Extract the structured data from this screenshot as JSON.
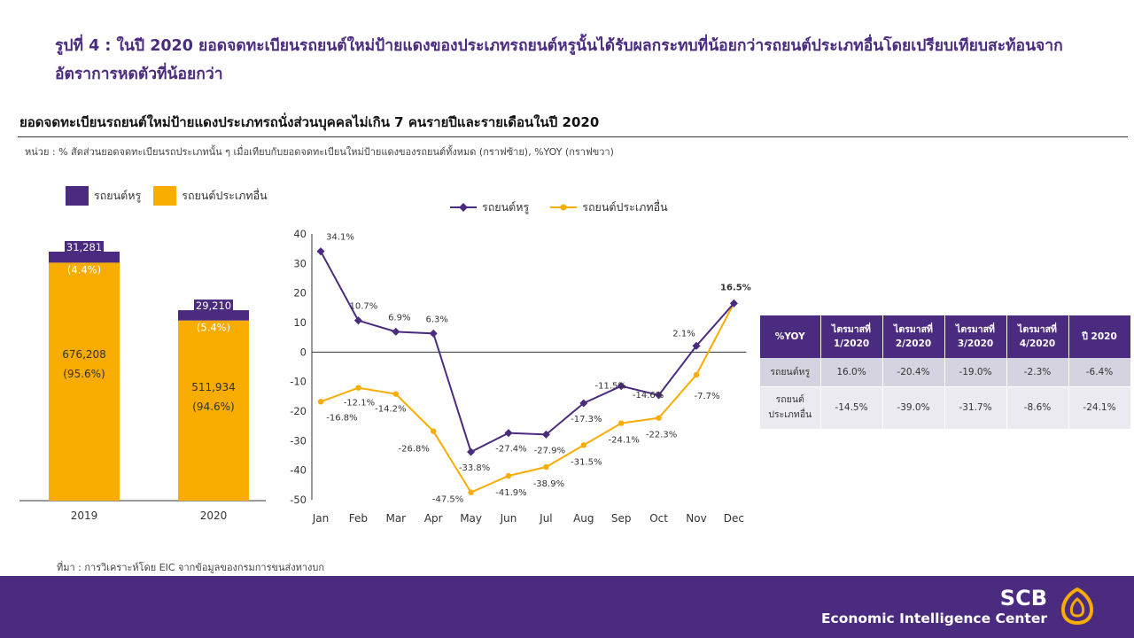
{
  "headline": "รูปที่ 4 : ในปี 2020 ยอดจดทะเบียนรถยนต์ใหม่ป้ายแดงของประเภทรถยนต์หรูนั้นได้รับผลกระทบที่น้อยกว่ารถยนต์ประเภทอื่นโดยเปรียบเทียบสะท้อนจากอัตราการหดตัวที่น้อยกว่า",
  "subtitle": "ยอดจดทะเบียนรถยนต์ใหม่ป้ายแดงประเภทรถนั่งส่วนบุคคลไม่เกิน 7 คนรายปีและรายเดือนในปี 2020",
  "unit_note": "หน่วย : % สัดส่วนยอดจดทะเบียนรถประเภทนั้น ๆ เมื่อเทียบกับยอดจดทะเบียนใหม่ป้ายแดงของรถยนต์ทั้งหมด (กราฟซ้าย), %YOY (กราฟขวา)",
  "source": "ที่มา : การวิเคราะห์โดย EIC จากข้อมูลของกรมการขนส่งทางบก",
  "brand": {
    "name": "SCB",
    "sub": "Economic Intelligence Center"
  },
  "colors": {
    "luxury": "#4b2b7f",
    "other": "#f9ac00",
    "accent": "#4b2b7f",
    "logo": "#f9ac00"
  },
  "chart_data": [
    {
      "type": "bar",
      "stacked": true,
      "categories": [
        "2019",
        "2020"
      ],
      "series": [
        {
          "name": "รถยนต์ประเภทอื่น",
          "values": [
            676208,
            511934
          ],
          "labels": [
            "676,208",
            "511,934"
          ],
          "share_labels": [
            "(95.6%)",
            "(94.6%)"
          ]
        },
        {
          "name": "รถยนต์หรู",
          "values": [
            31281,
            29210
          ],
          "labels": [
            "31,281",
            "29,210"
          ],
          "share_labels": [
            "(4.4%)",
            "(5.4%)"
          ]
        }
      ],
      "legend": [
        "รถยนต์หรู",
        "รถยนต์ประเภทอื่น"
      ],
      "legend_position": "top-left"
    },
    {
      "type": "line",
      "categories": [
        "Jan",
        "Feb",
        "Mar",
        "Apr",
        "May",
        "Jun",
        "Jul",
        "Aug",
        "Sep",
        "Oct",
        "Nov",
        "Dec"
      ],
      "series": [
        {
          "name": "รถยนต์หรู",
          "values": [
            34.1,
            10.7,
            6.9,
            6.3,
            -33.8,
            -27.4,
            -27.9,
            -17.3,
            -11.5,
            -14.6,
            2.1,
            16.5
          ],
          "labels": [
            "34.1%",
            "10.7%",
            "6.9%",
            "6.3%",
            "-33.8%",
            "-27.4%",
            "-27.9%",
            "-17.3%",
            "-11.5%",
            "-14.6%",
            "2.1%",
            "16.5%"
          ]
        },
        {
          "name": "รถยนต์ประเภทอื่น",
          "values": [
            -16.8,
            -12.1,
            -14.2,
            -26.8,
            -47.5,
            -41.9,
            -38.9,
            -31.5,
            -24.1,
            -22.3,
            -7.7,
            16.5
          ],
          "labels": [
            "-16.8%",
            "-12.1%",
            "-14.2%",
            "-26.8%",
            "-47.5%",
            "-41.9%",
            "-38.9%",
            "-31.5%",
            "-24.1%",
            "-22.3%",
            "-7.7%",
            ""
          ]
        }
      ],
      "y_ticks": [
        "40",
        "30",
        "20",
        "10",
        "0",
        "-10",
        "-20",
        "-30",
        "-40",
        "-50"
      ],
      "ylim": [
        -50,
        40
      ],
      "legend_position": "top-center",
      "grid": false
    },
    {
      "type": "table",
      "header": [
        "%YOY",
        "ไตรมาสที่\n1/2020",
        "ไตรมาสที่\n2/2020",
        "ไตรมาสที่\n3/2020",
        "ไตรมาสที่\n4/2020",
        "ปี 2020"
      ],
      "rows": [
        [
          "รถยนต์หรู",
          "16.0%",
          "-20.4%",
          "-19.0%",
          "-2.3%",
          "-6.4%"
        ],
        [
          "รถยนต์\nประเภทอื่น",
          "-14.5%",
          "-39.0%",
          "-31.7%",
          "-8.6%",
          "-24.1%"
        ]
      ]
    }
  ]
}
